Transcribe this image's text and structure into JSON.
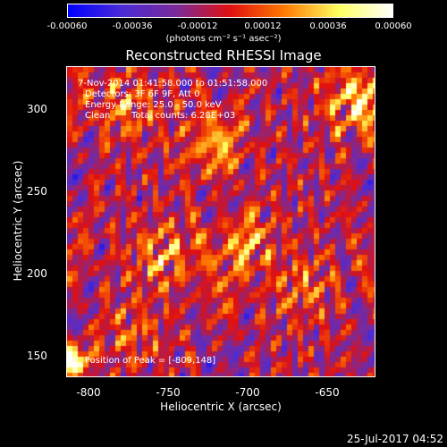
{
  "chart_data": {
    "type": "heatmap",
    "title": "Reconstructed RHESSI Image",
    "xlabel": "Heliocentric X (arcsec)",
    "ylabel": "Heliocentric Y (arcsec)",
    "xlim": [
      -810,
      -618
    ],
    "ylim": [
      137,
      330
    ],
    "x_ticks": [
      "-800",
      "-750",
      "-700",
      "-650"
    ],
    "y_ticks": [
      "150",
      "200",
      "250",
      "300"
    ],
    "colorbar": {
      "ticks": [
        "-0.00060",
        "-0.00036",
        "-0.00012",
        "0.00012",
        "0.00036",
        "0.00060"
      ],
      "range": [
        -0.0006,
        0.0006
      ],
      "units": "(photons cm⁻² s⁻¹ asec⁻²)",
      "colors": [
        "#0000ff",
        "#4b2bd6",
        "#7a2a9a",
        "#e01010",
        "#ff7a00",
        "#ffff60",
        "#ffffff"
      ]
    },
    "annotations": {
      "time_range": "7-Nov-2014 01:41:58.000 to 01:51:58.000",
      "detectors": "Detectors: 3F 6F 9F, Att 0",
      "energy_range": "Energy Range: 25.0 - 50.0 keV",
      "method": "Clean",
      "total_counts": "Total counts: 6.28E+03",
      "peak": "Position of Peak = [-809,148]"
    },
    "peak_position": [
      -809,
      148
    ],
    "grid": false
  },
  "footer": {
    "timestamp": "25-Jul-2017 04:52"
  }
}
